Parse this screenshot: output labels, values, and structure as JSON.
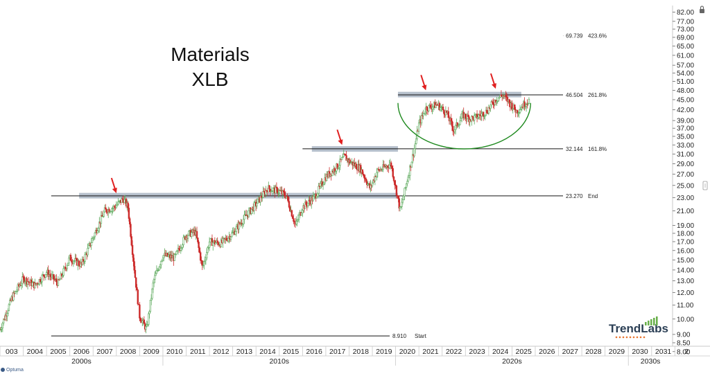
{
  "chart_data": {
    "type": "candlestick",
    "title": "Materials",
    "subtitle": "XLB",
    "scale": "log",
    "ylim": [
      8.3,
      85
    ],
    "xlim": [
      2003.0,
      2031.9
    ],
    "y_ticks": [
      82,
      77,
      73,
      69,
      65,
      61,
      57,
      54,
      51,
      48,
      45,
      42,
      39,
      37,
      35,
      33,
      31,
      29,
      27,
      25,
      23,
      21,
      19,
      18,
      17,
      16,
      15,
      14,
      13,
      12,
      11,
      10,
      9,
      8.5,
      8
    ],
    "x_tick_labels": [
      "003",
      "2004",
      "2005",
      "2006",
      "2007",
      "2008",
      "2009",
      "2010",
      "2011",
      "2012",
      "2013",
      "2014",
      "2015",
      "2016",
      "2017",
      "2018",
      "2019",
      "2020",
      "2021",
      "2022",
      "2023",
      "2024",
      "2025",
      "2026",
      "2027",
      "2028",
      "2029",
      "2030",
      "2031",
      "2"
    ],
    "decades": [
      "2000s",
      "2010s",
      "2020s",
      "2030s"
    ],
    "levels": [
      {
        "value": 69.739,
        "value_label": "69.739",
        "tag": "423.6%",
        "x_start": 2027.2
      },
      {
        "value": 46.504,
        "value_label": "46.504",
        "tag": "261.8%",
        "x_start": 2020.1
      },
      {
        "value": 32.144,
        "value_label": "32.144",
        "tag": "161.8%",
        "x_start": 2016.0
      },
      {
        "value": 23.27,
        "value_label": "23.270",
        "tag": "End",
        "x_start": 2005.2
      },
      {
        "value": 8.91,
        "value_label": "8.910",
        "tag": "Start",
        "x_start": 2005.2
      }
    ],
    "resistance_zones": [
      {
        "x_start": 2006.4,
        "x_end": 2020.1,
        "value": 23.3
      },
      {
        "x_start": 2016.4,
        "x_end": 2020.1,
        "value": 32.1
      },
      {
        "x_start": 2020.1,
        "x_end": 2025.4,
        "value": 46.6
      }
    ],
    "arrows": [
      {
        "x": 2008.0,
        "value": 23.7
      },
      {
        "x": 2017.7,
        "value": 33.0
      },
      {
        "x": 2021.3,
        "value": 48.0
      },
      {
        "x": 2024.3,
        "value": 48.5
      }
    ],
    "base_arc": {
      "x_start": 2020.1,
      "x_end": 2025.8,
      "top_value": 44.0,
      "bottom_value": 32.1
    },
    "series_points": [
      [
        2003.0,
        9.3
      ],
      [
        2003.5,
        11.5
      ],
      [
        2004.0,
        13.2
      ],
      [
        2004.5,
        12.6
      ],
      [
        2005.0,
        13.8
      ],
      [
        2005.5,
        12.8
      ],
      [
        2006.0,
        15.2
      ],
      [
        2006.5,
        14.5
      ],
      [
        2007.0,
        17.5
      ],
      [
        2007.5,
        21.0
      ],
      [
        2007.9,
        21.5
      ],
      [
        2008.3,
        22.8
      ],
      [
        2008.5,
        21.5
      ],
      [
        2008.8,
        13.5
      ],
      [
        2009.0,
        10.2
      ],
      [
        2009.3,
        9.3
      ],
      [
        2009.6,
        13.0
      ],
      [
        2010.0,
        15.5
      ],
      [
        2010.5,
        15.2
      ],
      [
        2011.0,
        17.8
      ],
      [
        2011.4,
        18.2
      ],
      [
        2011.7,
        14.2
      ],
      [
        2012.0,
        17.0
      ],
      [
        2012.5,
        16.8
      ],
      [
        2013.0,
        18.0
      ],
      [
        2013.5,
        20.0
      ],
      [
        2014.0,
        22.0
      ],
      [
        2014.5,
        24.5
      ],
      [
        2015.0,
        24.0
      ],
      [
        2015.3,
        23.3
      ],
      [
        2015.7,
        19.0
      ],
      [
        2016.0,
        21.5
      ],
      [
        2016.5,
        23.0
      ],
      [
        2017.0,
        26.5
      ],
      [
        2017.5,
        28.5
      ],
      [
        2017.8,
        30.5
      ],
      [
        2018.0,
        29.5
      ],
      [
        2018.5,
        28.0
      ],
      [
        2018.9,
        24.5
      ],
      [
        2019.2,
        27.5
      ],
      [
        2019.8,
        29.0
      ],
      [
        2020.2,
        21.0
      ],
      [
        2020.5,
        26.0
      ],
      [
        2020.8,
        32.0
      ],
      [
        2021.0,
        38.0
      ],
      [
        2021.3,
        42.5
      ],
      [
        2021.8,
        43.5
      ],
      [
        2022.2,
        41.0
      ],
      [
        2022.5,
        36.5
      ],
      [
        2022.9,
        40.5
      ],
      [
        2023.2,
        39.5
      ],
      [
        2023.5,
        40.0
      ],
      [
        2023.9,
        41.5
      ],
      [
        2024.3,
        45.0
      ],
      [
        2024.6,
        46.5
      ],
      [
        2024.9,
        44.0
      ],
      [
        2025.2,
        41.5
      ],
      [
        2025.5,
        43.5
      ],
      [
        2025.75,
        45.0
      ]
    ]
  },
  "branding": {
    "logo_prefix": "Trend",
    "logo_suffix": "Labs",
    "colors": {
      "primary": "#2b3f55",
      "accent": "#e8732c"
    }
  },
  "footer": {
    "source_label": "Optuma"
  },
  "colors": {
    "up_candle": "#5aa85a",
    "down_candle": "#cc2b2b",
    "zone": "#a9b5c3",
    "arc": "#1f8a1f",
    "arrow": "#e02020",
    "level_line": "#111111"
  },
  "icons": {
    "lock": "lock-icon"
  }
}
